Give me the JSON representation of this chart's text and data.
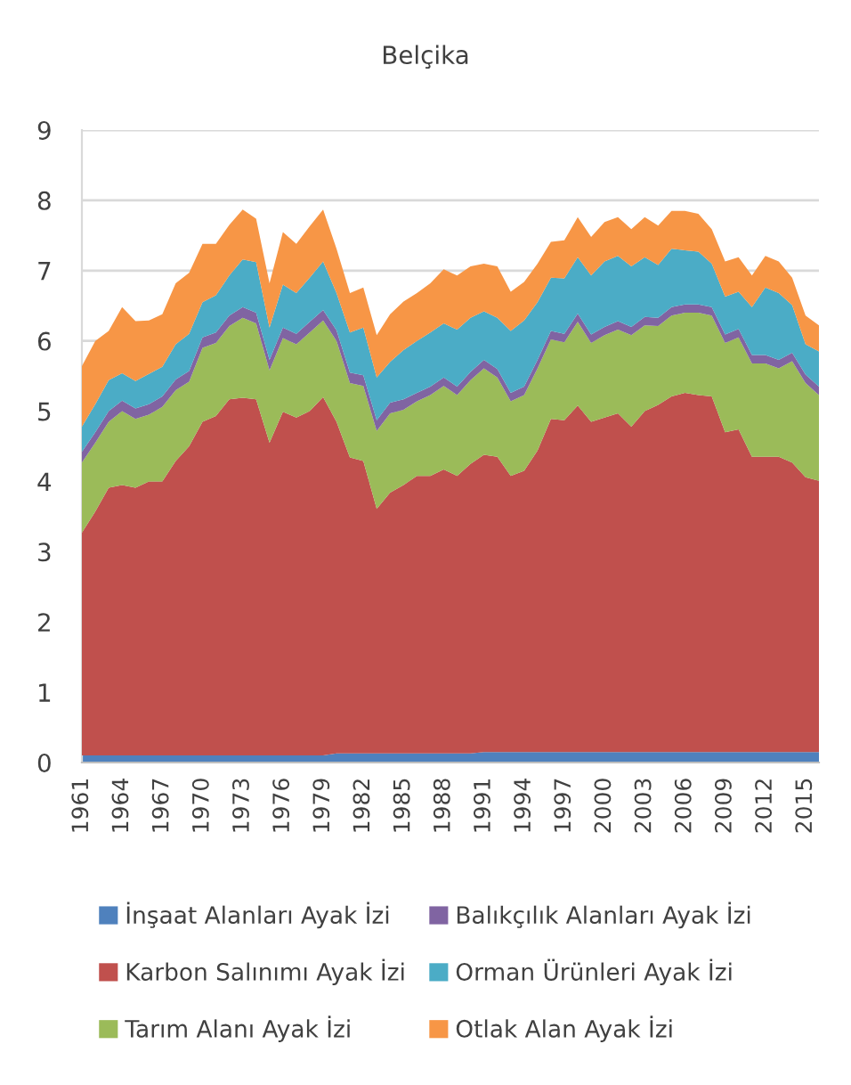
{
  "chart_data": {
    "type": "area",
    "stacked": true,
    "title": "Belçika",
    "categories": [
      "1961",
      null,
      null,
      "1964",
      null,
      null,
      "1967",
      null,
      null,
      "1970",
      null,
      null,
      "1973",
      null,
      null,
      "1976",
      null,
      null,
      "1979",
      null,
      null,
      "1982",
      null,
      null,
      "1985",
      null,
      null,
      "1988",
      null,
      null,
      "1991",
      null,
      null,
      "1994",
      null,
      null,
      "1997",
      null,
      null,
      "2000",
      null,
      null,
      "2003",
      null,
      null,
      "2006",
      null,
      null,
      "2009",
      null,
      null,
      "2012",
      null,
      null,
      "2015",
      null
    ],
    "series": [
      {
        "name": "İnşaat Alanları Ayak İzi",
        "color": "#4f81bd",
        "values": [
          0.1,
          0.1,
          0.1,
          0.1,
          0.1,
          0.1,
          0.1,
          0.1,
          0.1,
          0.1,
          0.1,
          0.1,
          0.1,
          0.1,
          0.1,
          0.1,
          0.1,
          0.1,
          0.1,
          0.13,
          0.13,
          0.13,
          0.13,
          0.13,
          0.13,
          0.13,
          0.13,
          0.13,
          0.13,
          0.13,
          0.15,
          0.15,
          0.15,
          0.15,
          0.15,
          0.15,
          0.15,
          0.15,
          0.15,
          0.15,
          0.15,
          0.15,
          0.15,
          0.15,
          0.15,
          0.15,
          0.15,
          0.15,
          0.15,
          0.15,
          0.15,
          0.15,
          0.15,
          0.15,
          0.15,
          0.15
        ]
      },
      {
        "name": "Karbon Salınımı Ayak İzi",
        "color": "#c0504d",
        "values": [
          3.17,
          3.47,
          3.81,
          3.85,
          3.81,
          3.9,
          3.9,
          4.19,
          4.4,
          4.75,
          4.83,
          5.07,
          5.09,
          5.07,
          4.45,
          4.89,
          4.81,
          4.9,
          5.1,
          4.72,
          4.21,
          4.16,
          3.48,
          3.71,
          3.82,
          3.95,
          3.95,
          4.04,
          3.95,
          4.12,
          4.23,
          4.2,
          3.93,
          4.0,
          4.29,
          4.74,
          4.72,
          4.93,
          4.7,
          4.76,
          4.82,
          4.63,
          4.85,
          4.94,
          5.06,
          5.11,
          5.08,
          5.06,
          4.55,
          4.59,
          4.2,
          4.2,
          4.2,
          4.12,
          3.91,
          3.86
        ]
      },
      {
        "name": "Tarım Alanı Ayak İzi",
        "color": "#9bbb59",
        "values": [
          1.0,
          0.98,
          0.94,
          1.05,
          0.98,
          0.95,
          1.06,
          1.01,
          0.92,
          1.05,
          1.04,
          1.04,
          1.14,
          1.08,
          1.03,
          1.05,
          1.04,
          1.12,
          1.09,
          1.15,
          1.06,
          1.07,
          1.11,
          1.13,
          1.07,
          1.06,
          1.15,
          1.19,
          1.15,
          1.19,
          1.23,
          1.13,
          1.06,
          1.08,
          1.17,
          1.13,
          1.11,
          1.19,
          1.12,
          1.17,
          1.19,
          1.3,
          1.22,
          1.12,
          1.15,
          1.14,
          1.17,
          1.15,
          1.27,
          1.31,
          1.33,
          1.33,
          1.26,
          1.44,
          1.34,
          1.22
        ]
      },
      {
        "name": "Balıkçılık Alanları Ayak İzi",
        "color": "#8064a2",
        "values": [
          0.15,
          0.15,
          0.15,
          0.15,
          0.15,
          0.15,
          0.15,
          0.15,
          0.15,
          0.15,
          0.15,
          0.15,
          0.15,
          0.15,
          0.15,
          0.15,
          0.15,
          0.15,
          0.15,
          0.15,
          0.15,
          0.15,
          0.15,
          0.15,
          0.15,
          0.12,
          0.12,
          0.12,
          0.12,
          0.12,
          0.12,
          0.12,
          0.12,
          0.12,
          0.12,
          0.12,
          0.12,
          0.12,
          0.12,
          0.12,
          0.12,
          0.12,
          0.12,
          0.12,
          0.12,
          0.12,
          0.12,
          0.12,
          0.12,
          0.12,
          0.12,
          0.12,
          0.12,
          0.12,
          0.12,
          0.12
        ]
      },
      {
        "name": "Orman Ürünleri Ayak İzi",
        "color": "#4bacc6",
        "values": [
          0.36,
          0.4,
          0.44,
          0.39,
          0.39,
          0.43,
          0.42,
          0.5,
          0.53,
          0.5,
          0.53,
          0.57,
          0.68,
          0.72,
          0.46,
          0.61,
          0.58,
          0.63,
          0.69,
          0.53,
          0.57,
          0.68,
          0.61,
          0.58,
          0.7,
          0.74,
          0.77,
          0.77,
          0.81,
          0.77,
          0.69,
          0.73,
          0.88,
          0.94,
          0.82,
          0.76,
          0.79,
          0.8,
          0.84,
          0.93,
          0.93,
          0.86,
          0.85,
          0.75,
          0.83,
          0.77,
          0.75,
          0.62,
          0.54,
          0.53,
          0.68,
          0.96,
          0.95,
          0.68,
          0.43,
          0.5
        ]
      },
      {
        "name": "Otlak Alan Ayak İzi",
        "color": "#f79646",
        "values": [
          0.86,
          0.9,
          0.7,
          0.94,
          0.85,
          0.76,
          0.75,
          0.87,
          0.87,
          0.83,
          0.73,
          0.72,
          0.71,
          0.62,
          0.63,
          0.75,
          0.7,
          0.73,
          0.74,
          0.63,
          0.56,
          0.57,
          0.6,
          0.68,
          0.69,
          0.68,
          0.7,
          0.77,
          0.77,
          0.73,
          0.68,
          0.73,
          0.56,
          0.55,
          0.55,
          0.51,
          0.54,
          0.57,
          0.55,
          0.56,
          0.55,
          0.53,
          0.57,
          0.56,
          0.54,
          0.56,
          0.54,
          0.49,
          0.5,
          0.49,
          0.45,
          0.45,
          0.45,
          0.39,
          0.41,
          0.37
        ]
      }
    ],
    "ylim": [
      0,
      9
    ],
    "yticks": [
      0,
      1,
      2,
      3,
      4,
      5,
      6,
      7,
      8,
      9
    ],
    "grid": "y",
    "legend": "bottom"
  }
}
